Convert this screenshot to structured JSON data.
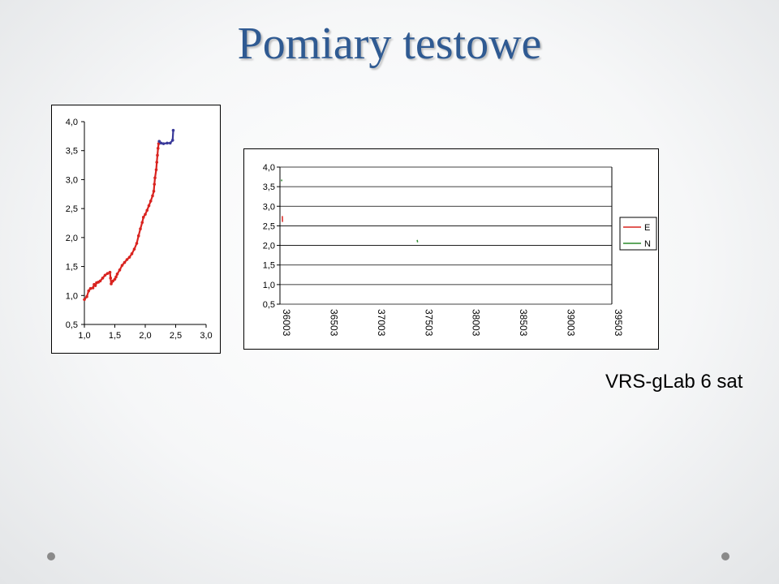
{
  "slide": {
    "title": "Pomiary testowe",
    "caption": "VRS-gLab 6 sat"
  },
  "colors": {
    "title": "#2f5a92",
    "series_E": "#d9231f",
    "series_N": "#2a8a2a",
    "track_end": "#3a3a9a"
  },
  "chart_data": [
    {
      "type": "scatter",
      "title": "",
      "xlabel": "",
      "ylabel": "",
      "xlim": [
        1.0,
        3.0
      ],
      "ylim": [
        0.5,
        4.0
      ],
      "x_ticks": [
        "1,0",
        "1,5",
        "2,0",
        "2,5",
        "3,0"
      ],
      "y_ticks": [
        "0,5",
        "1,0",
        "1,5",
        "2,0",
        "2,5",
        "3,0",
        "3,5",
        "4,0"
      ],
      "grid": false,
      "legend": "none",
      "series": [
        {
          "color": "#d9231f",
          "points": [
            [
              1.0,
              0.93
            ],
            [
              1.04,
              0.98
            ],
            [
              1.07,
              1.08
            ],
            [
              1.1,
              1.12
            ],
            [
              1.14,
              1.13
            ],
            [
              1.16,
              1.19
            ],
            [
              1.18,
              1.17
            ],
            [
              1.2,
              1.22
            ],
            [
              1.23,
              1.23
            ],
            [
              1.26,
              1.25
            ],
            [
              1.3,
              1.3
            ],
            [
              1.34,
              1.35
            ],
            [
              1.38,
              1.38
            ],
            [
              1.42,
              1.4
            ],
            [
              1.43,
              1.3
            ],
            [
              1.44,
              1.2
            ],
            [
              1.47,
              1.25
            ],
            [
              1.5,
              1.28
            ],
            [
              1.52,
              1.32
            ],
            [
              1.54,
              1.37
            ],
            [
              1.58,
              1.44
            ],
            [
              1.62,
              1.52
            ],
            [
              1.66,
              1.57
            ],
            [
              1.7,
              1.62
            ],
            [
              1.74,
              1.66
            ],
            [
              1.78,
              1.72
            ],
            [
              1.82,
              1.8
            ],
            [
              1.86,
              1.9
            ],
            [
              1.89,
              2.03
            ],
            [
              1.92,
              2.15
            ],
            [
              1.95,
              2.26
            ],
            [
              1.97,
              2.35
            ],
            [
              2.0,
              2.4
            ],
            [
              2.03,
              2.47
            ],
            [
              2.06,
              2.55
            ],
            [
              2.09,
              2.63
            ],
            [
              2.12,
              2.72
            ],
            [
              2.14,
              2.8
            ],
            [
              2.15,
              2.92
            ],
            [
              2.16,
              3.03
            ],
            [
              2.18,
              3.17
            ],
            [
              2.19,
              3.3
            ],
            [
              2.2,
              3.42
            ],
            [
              2.21,
              3.54
            ],
            [
              2.22,
              3.62
            ],
            [
              2.23,
              3.66
            ]
          ]
        },
        {
          "color": "#3a3a9a",
          "points": [
            [
              2.23,
              3.66
            ],
            [
              2.26,
              3.63
            ],
            [
              2.3,
              3.62
            ],
            [
              2.36,
              3.63
            ],
            [
              2.41,
              3.63
            ],
            [
              2.45,
              3.68
            ],
            [
              2.46,
              3.85
            ]
          ]
        }
      ]
    },
    {
      "type": "line",
      "title": "",
      "xlabel": "",
      "ylabel": "",
      "categories": [
        "36003",
        "36503",
        "37003",
        "37503",
        "38003",
        "38503",
        "39003",
        "39503"
      ],
      "xlim": [
        36003,
        39503
      ],
      "ylim": [
        0.5,
        4.0
      ],
      "y_ticks": [
        "0,5",
        "1,0",
        "1,5",
        "2,0",
        "2,5",
        "3,0",
        "3,5",
        "4,0"
      ],
      "grid": true,
      "legend": "right",
      "series": [
        {
          "name": "E",
          "color": "#d9231f",
          "points": [
            [
              36028,
              2.75
            ],
            [
              36030,
              2.6
            ]
          ]
        },
        {
          "name": "N",
          "color": "#2a8a2a",
          "points": [
            [
              36020,
              3.68
            ],
            [
              36022,
              3.64
            ],
            [
              37450,
              2.14
            ],
            [
              37455,
              2.08
            ]
          ]
        }
      ]
    }
  ]
}
